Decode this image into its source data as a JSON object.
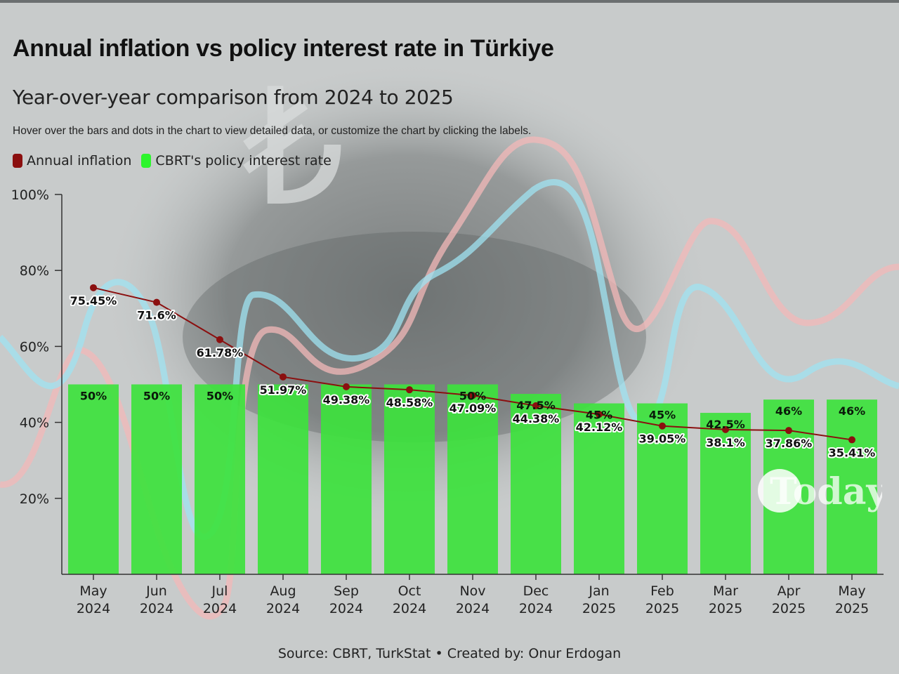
{
  "title": "Annual inflation vs policy interest rate in Türkiye",
  "subtitle": "Year-over-year comparison from 2024 to 2025",
  "hint": "Hover over the bars and dots in the chart to view detailed data, or customize the chart by clicking the labels.",
  "legend": {
    "inflation": "Annual inflation",
    "policy_rate": "CBRT's policy interest rate"
  },
  "source": "Source: CBRT, TurkStat • Created by: Onur Erdogan",
  "logo_text": "Today",
  "colors": {
    "inflation": "#8b0f0f",
    "policy_rate": "#3de23d",
    "legend_policy": "#2cf52c"
  },
  "chart_data": {
    "type": "bar",
    "title": "Annual inflation vs policy interest rate in Türkiye",
    "subtitle": "Year-over-year comparison from 2024 to 2025",
    "categories": [
      [
        "May",
        "2024"
      ],
      [
        "Jun",
        "2024"
      ],
      [
        "Jul",
        "2024"
      ],
      [
        "Aug",
        "2024"
      ],
      [
        "Sep",
        "2024"
      ],
      [
        "Oct",
        "2024"
      ],
      [
        "Nov",
        "2024"
      ],
      [
        "Dec",
        "2024"
      ],
      [
        "Jan",
        "2025"
      ],
      [
        "Feb",
        "2025"
      ],
      [
        "Mar",
        "2025"
      ],
      [
        "Apr",
        "2025"
      ],
      [
        "May",
        "2025"
      ]
    ],
    "y_ticks": [
      {
        "value": 20,
        "label": "20%"
      },
      {
        "value": 40,
        "label": "40%"
      },
      {
        "value": 60,
        "label": "60%"
      },
      {
        "value": 80,
        "label": "80%"
      },
      {
        "value": 100,
        "label": "100%"
      }
    ],
    "ylim": [
      0,
      100
    ],
    "series": [
      {
        "name": "CBRT's policy interest rate",
        "kind": "bar",
        "values": [
          50,
          50,
          50,
          50,
          50,
          50,
          50,
          47.5,
          45,
          45,
          42.5,
          46,
          46
        ],
        "labels": [
          "50%",
          "50%",
          "50%",
          "",
          "",
          "",
          "50%",
          "47.5%",
          "45%",
          "45%",
          "42.5%",
          "46%",
          "46%"
        ]
      },
      {
        "name": "Annual inflation",
        "kind": "line",
        "values": [
          75.45,
          71.6,
          61.78,
          51.97,
          49.38,
          48.58,
          47.09,
          44.38,
          42.12,
          39.05,
          38.1,
          37.86,
          35.41
        ],
        "labels": [
          "75.45%",
          "71.6%",
          "61.78%",
          "51.97%",
          "49.38%",
          "48.58%",
          "47.09%",
          "44.38%",
          "42.12%",
          "39.05%",
          "38.1%",
          "37.86%",
          "35.41%"
        ]
      }
    ]
  }
}
